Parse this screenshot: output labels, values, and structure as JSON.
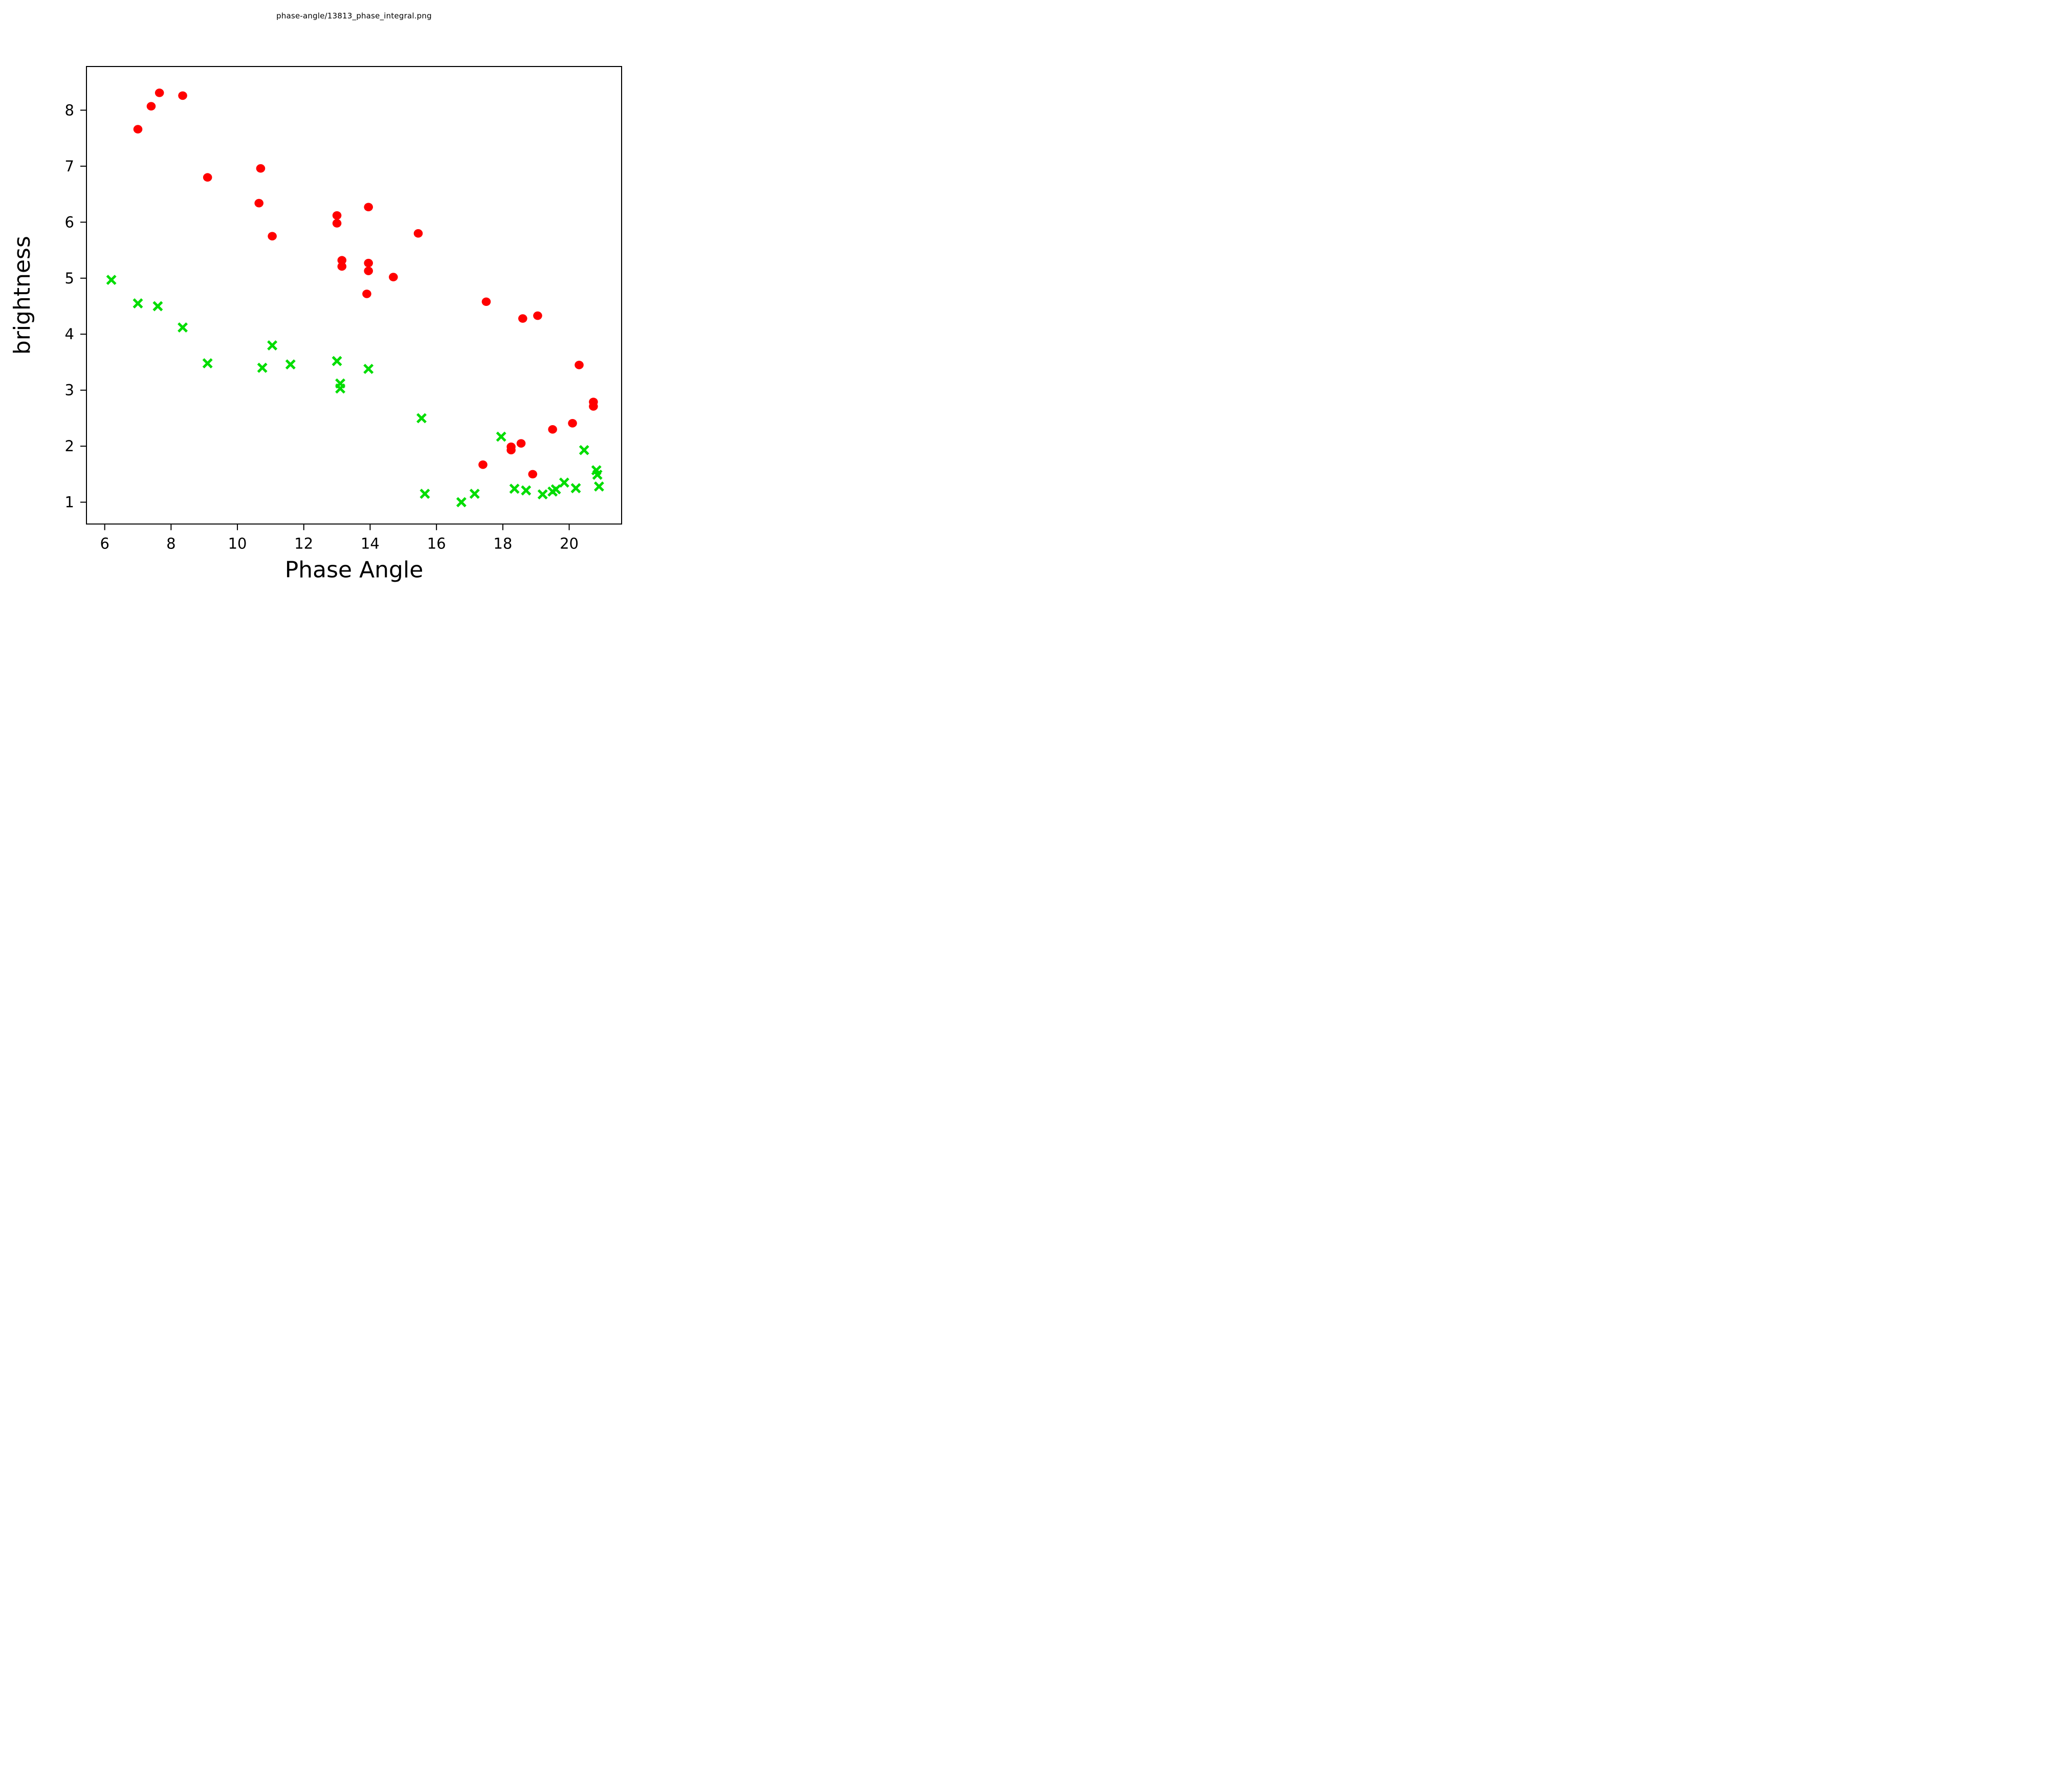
{
  "title": "phase-angle/13813_phase_integral.png",
  "chart_data": {
    "type": "scatter",
    "title": "phase-angle/13813_phase_integral.png",
    "xlabel": "Phase Angle",
    "ylabel": "brightness",
    "xlim": [
      5.45,
      21.58
    ],
    "ylim": [
      0.61,
      8.78
    ],
    "xticks": [
      6,
      8,
      10,
      12,
      14,
      16,
      18,
      20
    ],
    "yticks": [
      1,
      2,
      3,
      4,
      5,
      6,
      7,
      8
    ],
    "grid": false,
    "legend": "none",
    "series": [
      {
        "name": "red-dots",
        "marker": "circle",
        "color": "#ff0000",
        "points": [
          [
            7.0,
            7.66
          ],
          [
            7.4,
            8.07
          ],
          [
            7.65,
            8.31
          ],
          [
            8.35,
            8.26
          ],
          [
            9.1,
            6.8
          ],
          [
            10.7,
            6.96
          ],
          [
            10.65,
            6.34
          ],
          [
            11.05,
            5.75
          ],
          [
            13.0,
            6.12
          ],
          [
            13.0,
            5.98
          ],
          [
            13.15,
            5.32
          ],
          [
            13.15,
            5.21
          ],
          [
            13.95,
            6.27
          ],
          [
            13.95,
            5.27
          ],
          [
            13.95,
            5.13
          ],
          [
            13.9,
            4.72
          ],
          [
            14.7,
            5.02
          ],
          [
            15.45,
            5.8
          ],
          [
            17.5,
            4.58
          ],
          [
            18.6,
            4.28
          ],
          [
            19.05,
            4.33
          ],
          [
            17.4,
            1.67
          ],
          [
            18.25,
            1.99
          ],
          [
            18.25,
            1.93
          ],
          [
            18.55,
            2.05
          ],
          [
            18.9,
            1.5
          ],
          [
            19.5,
            2.3
          ],
          [
            20.1,
            2.41
          ],
          [
            20.3,
            3.45
          ],
          [
            20.73,
            2.79
          ],
          [
            20.73,
            2.71
          ]
        ]
      },
      {
        "name": "green-crosses",
        "marker": "x",
        "color": "#00dd00",
        "points": [
          [
            6.2,
            4.97
          ],
          [
            7.0,
            4.55
          ],
          [
            7.6,
            4.5
          ],
          [
            8.35,
            4.12
          ],
          [
            9.1,
            3.48
          ],
          [
            10.75,
            3.4
          ],
          [
            11.05,
            3.8
          ],
          [
            11.6,
            3.46
          ],
          [
            13.0,
            3.52
          ],
          [
            13.1,
            3.12
          ],
          [
            13.1,
            3.03
          ],
          [
            13.95,
            3.38
          ],
          [
            15.55,
            2.5
          ],
          [
            15.65,
            1.15
          ],
          [
            16.75,
            1.0
          ],
          [
            17.15,
            1.15
          ],
          [
            17.95,
            2.17
          ],
          [
            18.35,
            1.24
          ],
          [
            18.7,
            1.21
          ],
          [
            19.2,
            1.14
          ],
          [
            19.5,
            1.19
          ],
          [
            19.6,
            1.23
          ],
          [
            19.85,
            1.35
          ],
          [
            20.2,
            1.25
          ],
          [
            20.45,
            1.93
          ],
          [
            20.82,
            1.57
          ],
          [
            20.85,
            1.49
          ],
          [
            20.9,
            1.28
          ]
        ]
      }
    ]
  }
}
